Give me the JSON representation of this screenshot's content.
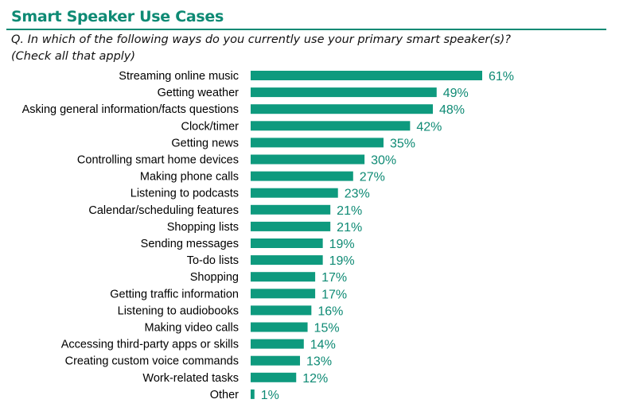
{
  "colors": {
    "accent": "#0e8a74",
    "bar": "#0e9a7e",
    "label": "#0e8a74"
  },
  "chart_data": {
    "type": "bar",
    "orientation": "horizontal",
    "title": "Smart Speaker Use Cases",
    "subtitle_line1": "Q. In which of the following ways do you currently use your primary smart speaker(s)?",
    "subtitle_line2": "(Check all that apply)",
    "categories": [
      "Streaming online music",
      "Getting weather",
      "Asking general information/facts questions",
      "Clock/timer",
      "Getting news",
      "Controlling smart home devices",
      "Making phone calls",
      "Listening to podcasts",
      "Calendar/scheduling features",
      "Shopping lists",
      "Sending messages",
      "To-do lists",
      "Shopping",
      "Getting traffic information",
      "Listening to audiobooks",
      "Making video calls",
      "Accessing third-party apps or skills",
      "Creating custom voice commands",
      "Work-related tasks",
      "Other"
    ],
    "values": [
      61,
      49,
      48,
      42,
      35,
      30,
      27,
      23,
      21,
      21,
      19,
      19,
      17,
      17,
      16,
      15,
      14,
      13,
      12,
      1
    ],
    "value_labels": [
      "61%",
      "49%",
      "48%",
      "42%",
      "35%",
      "30%",
      "27%",
      "23%",
      "21%",
      "21%",
      "19%",
      "19%",
      "17%",
      "17%",
      "16%",
      "15%",
      "14%",
      "13%",
      "12%",
      "1%"
    ],
    "unit": "%",
    "xlim": [
      0,
      61
    ],
    "grid": false,
    "legend": "none"
  }
}
